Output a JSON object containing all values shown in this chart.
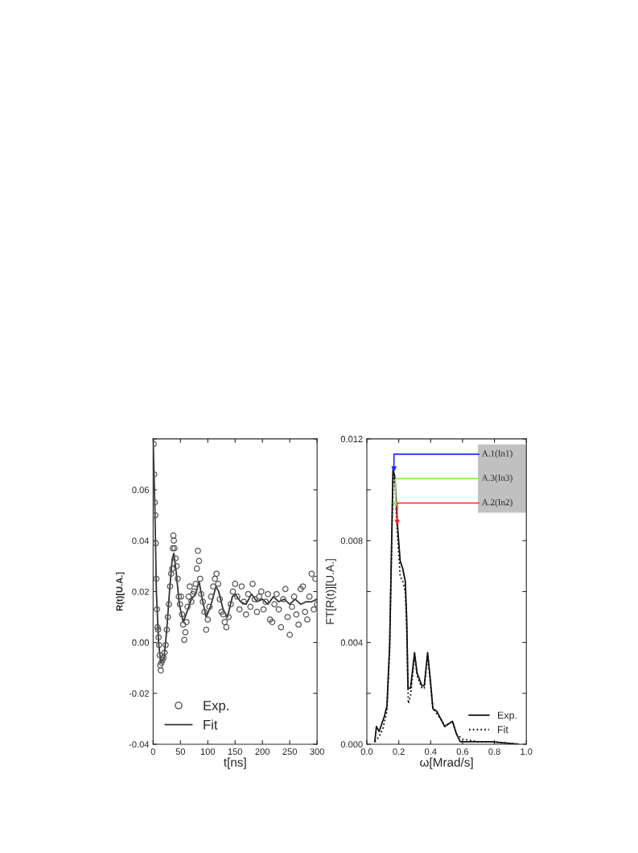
{
  "chart_data": [
    {
      "type": "scatter",
      "xlabel": "t[ns]",
      "ylabel": "R(t)[U.A.]",
      "xlim": [
        0,
        300
      ],
      "ylim": [
        -0.04,
        0.08
      ],
      "xticks": [
        0,
        50,
        100,
        150,
        200,
        250,
        300
      ],
      "yticks": [
        {
          "value": -0.04,
          "label": "-0.04"
        },
        {
          "value": -0.02,
          "label": "-0.02"
        },
        {
          "value": 0,
          "label": "0.00"
        },
        {
          "value": 0.02,
          "label": "0.02"
        },
        {
          "value": 0.04,
          "label": "0.04"
        },
        {
          "value": 0.06,
          "label": "0.06"
        },
        {
          "value": 0.08,
          "label": null
        }
      ],
      "legend": "bottom left",
      "grid": false,
      "series": [
        {
          "name": "Exp.",
          "marker": "circle",
          "color": "#555555",
          "x": [
            1,
            2,
            3,
            4,
            5,
            6,
            7,
            8,
            9,
            10,
            11,
            12,
            13,
            14,
            15,
            17,
            19,
            21,
            23,
            25,
            27,
            29,
            31,
            33,
            35,
            36,
            37,
            38,
            39,
            41,
            43,
            45,
            47,
            49,
            51,
            53,
            55,
            57,
            59,
            61,
            63,
            65,
            67,
            70,
            73,
            75,
            78,
            80,
            82,
            84,
            86,
            88,
            91,
            94,
            97,
            100,
            103,
            106,
            110,
            113,
            116,
            119,
            122,
            125,
            128,
            131,
            134,
            138,
            142,
            146,
            150,
            154,
            158,
            162,
            166,
            170,
            174,
            178,
            182,
            186,
            190,
            194,
            198,
            202,
            206,
            210,
            214,
            218,
            222,
            226,
            230,
            234,
            238,
            242,
            246,
            250,
            254,
            258,
            262,
            266,
            270,
            274,
            278,
            282,
            286,
            290,
            294,
            297,
            300
          ],
          "values": [
            0.078,
            0.066,
            0.055,
            0.05,
            0.039,
            0.025,
            0.013,
            0.006,
            0.005,
            0.002,
            -0.001,
            -0.005,
            -0.009,
            -0.011,
            -0.008,
            -0.007,
            -0.006,
            -0.004,
            -0.001,
            0.005,
            0.01,
            0.015,
            0.022,
            0.027,
            0.029,
            0.037,
            0.042,
            0.04,
            0.037,
            0.033,
            0.03,
            0.025,
            0.018,
            0.015,
            0.018,
            0.011,
            0.007,
            0.001,
            0.004,
            0.008,
            0.014,
            0.018,
            0.022,
            0.016,
            0.019,
            0.02,
            0.023,
            0.029,
            0.036,
            0.032,
            0.025,
            0.019,
            0.016,
            0.012,
            0.005,
            0.009,
            0.014,
            0.018,
            0.022,
            0.025,
            0.027,
            0.023,
            0.017,
            0.012,
            0.011,
            0.008,
            0.006,
            0.01,
            0.015,
            0.02,
            0.023,
            0.018,
            0.013,
            0.022,
            0.016,
            0.011,
            0.019,
            0.014,
            0.023,
            0.017,
            0.012,
            0.018,
            0.02,
            0.013,
            0.016,
            0.019,
            0.009,
            0.008,
            0.015,
            0.019,
            0.013,
            0.006,
            0.017,
            0.021,
            0.01,
            0.003,
            0.014,
            0.018,
            0.011,
            0.007,
            0.021,
            0.022,
            0.012,
            0.009,
            0.018,
            0.027,
            0.013,
            0.025,
            0.015
          ]
        },
        {
          "name": "Fit",
          "type": "line",
          "marker": "none",
          "line_style": "solid",
          "color": "#333333",
          "x": [
            0,
            3,
            6,
            10,
            14,
            20,
            25,
            30,
            35,
            38,
            42,
            48,
            55,
            62,
            70,
            78,
            84,
            90,
            97,
            105,
            115,
            120,
            128,
            136,
            145,
            150,
            160,
            170,
            180,
            190,
            200,
            210,
            220,
            230,
            240,
            250,
            260,
            270,
            280,
            290,
            300
          ],
          "values": [
            0.08,
            0.055,
            0.02,
            0.0,
            -0.008,
            -0.006,
            0.005,
            0.02,
            0.033,
            0.035,
            0.028,
            0.015,
            0.008,
            0.012,
            0.017,
            0.019,
            0.024,
            0.017,
            0.01,
            0.014,
            0.022,
            0.02,
            0.013,
            0.01,
            0.018,
            0.019,
            0.016,
            0.015,
            0.019,
            0.016,
            0.017,
            0.015,
            0.018,
            0.016,
            0.017,
            0.015,
            0.017,
            0.015,
            0.016,
            0.016,
            0.017
          ]
        }
      ]
    },
    {
      "type": "line",
      "xlabel": "ω[Mrad/s]",
      "ylabel": "FT[R(t)][U.A.]",
      "xlim": [
        0,
        1.0
      ],
      "ylim": [
        0,
        0.012
      ],
      "xticks": [
        {
          "value": 0,
          "label": "0.0"
        },
        {
          "value": 0.2,
          "label": "0.2"
        },
        {
          "value": 0.4,
          "label": "0.4"
        },
        {
          "value": 0.6,
          "label": "0.6"
        },
        {
          "value": 0.8,
          "label": "0.8"
        },
        {
          "value": 1.0,
          "label": "1.0"
        }
      ],
      "yticks": [
        {
          "value": 0,
          "label": "0.000"
        },
        {
          "value": 0.002,
          "label": null
        },
        {
          "value": 0.004,
          "label": "0.004"
        },
        {
          "value": 0.006,
          "label": null
        },
        {
          "value": 0.008,
          "label": "0.008"
        },
        {
          "value": 0.01,
          "label": null
        },
        {
          "value": 0.012,
          "label": "0.012"
        }
      ],
      "legend": "bottom right",
      "grid": false,
      "annotations": [
        {
          "text": "A.1(In1)",
          "x": 0.17,
          "y": 0.0107
        },
        {
          "text": "A.3(In3)",
          "x": 0.18,
          "y": 0.0093
        },
        {
          "text": "A.2(In2)",
          "x": 0.19,
          "y": 0.0086
        }
      ],
      "series": [
        {
          "name": "Exp.",
          "line_style": "solid",
          "color": "#111111",
          "x": [
            0.05,
            0.06,
            0.077,
            0.11,
            0.126,
            0.143,
            0.159,
            0.164,
            0.176,
            0.192,
            0.209,
            0.225,
            0.241,
            0.25,
            0.258,
            0.274,
            0.299,
            0.315,
            0.345,
            0.36,
            0.381,
            0.397,
            0.414,
            0.438,
            0.463,
            0.488,
            0.512,
            0.537,
            0.562,
            0.586,
            0.685,
            0.78,
            0.95
          ],
          "values": [
            0.0001,
            0.0007,
            0.0005,
            0.0011,
            0.0015,
            0.0039,
            0.0091,
            0.0108,
            0.0105,
            0.0086,
            0.0072,
            0.0069,
            0.0064,
            0.0049,
            0.0022,
            0.0022,
            0.0036,
            0.0028,
            0.0023,
            0.0023,
            0.0036,
            0.0026,
            0.0014,
            0.0013,
            0.001,
            0.0007,
            0.0008,
            0.0009,
            0.0004,
            0.0001,
            0.0001,
            0.0001,
            0.0
          ]
        },
        {
          "name": "Fit",
          "line_style": "dotted",
          "color": "#111111",
          "x": [
            0.05,
            0.077,
            0.1,
            0.126,
            0.143,
            0.159,
            0.164,
            0.176,
            0.192,
            0.209,
            0.225,
            0.241,
            0.25,
            0.26,
            0.274,
            0.299,
            0.315,
            0.345,
            0.36,
            0.381,
            0.397,
            0.414,
            0.438,
            0.463,
            0.488,
            0.512,
            0.537,
            0.562,
            0.6,
            0.7,
            0.8,
            0.95
          ],
          "values": [
            0.0001,
            0.0003,
            0.0006,
            0.0013,
            0.0037,
            0.0089,
            0.0106,
            0.0102,
            0.0082,
            0.0066,
            0.0064,
            0.006,
            0.0045,
            0.0016,
            0.0019,
            0.0035,
            0.0027,
            0.0022,
            0.0022,
            0.0035,
            0.0025,
            0.0014,
            0.0012,
            0.001,
            0.0007,
            0.0008,
            0.0009,
            0.0004,
            0.0002,
            0.0001,
            0.0001,
            0.0
          ]
        }
      ]
    }
  ]
}
